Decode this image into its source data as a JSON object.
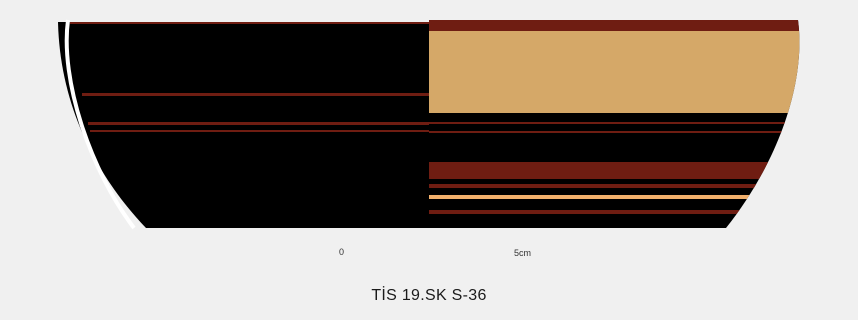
{
  "drawing": {
    "caption": "TİS 19.SK S-36",
    "scale_bar": {
      "start_label": "0",
      "end_label": "5cm"
    },
    "colors": {
      "background": "#f0f0f0",
      "slip_black": "#000000",
      "band_red": "#6f1d12",
      "band_buff": "#d5a868",
      "band_light": "#f2b06c",
      "outline_white": "#ffffff"
    }
  }
}
